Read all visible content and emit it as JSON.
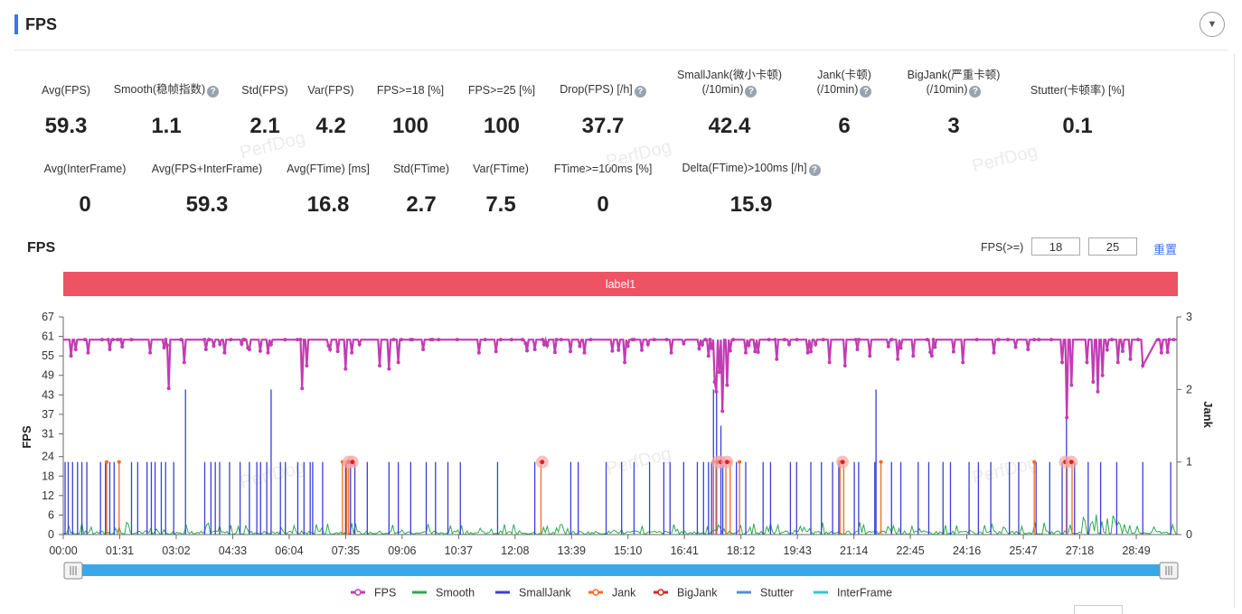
{
  "header": {
    "title": "FPS"
  },
  "metrics_row1": [
    {
      "label": "Avg(FPS)",
      "value": "59.3"
    },
    {
      "label": "Smooth(稳帧指数)",
      "value": "1.1",
      "help": true
    },
    {
      "label": "Std(FPS)",
      "value": "2.1"
    },
    {
      "label": "Var(FPS)",
      "value": "4.2"
    },
    {
      "label": "FPS>=18 [%]",
      "value": "100"
    },
    {
      "label": "FPS>=25 [%]",
      "value": "100"
    },
    {
      "label": "Drop(FPS) [/h]",
      "value": "37.7",
      "help": true
    },
    {
      "label": "SmallJank(微小卡顿)",
      "label2": "(/10min)",
      "value": "42.4",
      "help": true
    },
    {
      "label": "Jank(卡顿)",
      "label2": "(/10min)",
      "value": "6",
      "help": true
    },
    {
      "label": "BigJank(严重卡顿)",
      "label2": "(/10min)",
      "value": "3",
      "help": true
    },
    {
      "label": "Stutter(卡顿率) [%]",
      "value": "0.1"
    }
  ],
  "metrics_row2": [
    {
      "label": "Avg(InterFrame)",
      "value": "0"
    },
    {
      "label": "Avg(FPS+InterFrame)",
      "value": "59.3"
    },
    {
      "label": "Avg(FTime) [ms]",
      "value": "16.8"
    },
    {
      "label": "Std(FTime)",
      "value": "2.7"
    },
    {
      "label": "Var(FTime)",
      "value": "7.5"
    },
    {
      "label": "FTime>=100ms [%]",
      "value": "0"
    },
    {
      "label": "Delta(FTime)>100ms [/h]",
      "value": "15.9",
      "help": true
    }
  ],
  "watermark": "PerfDog",
  "chart_section": {
    "title": "FPS",
    "threshold_label": "FPS(>=)",
    "threshold1": "18",
    "threshold2": "25",
    "reset_label": "重置",
    "label_band": "label1"
  },
  "colors": {
    "FPS": "#c23cb3",
    "Smooth": "#2fa84f",
    "SmallJank": "#3a3fdb",
    "Jank": "#f26b21",
    "BigJank": "#e02020",
    "Stutter": "#4a90e2",
    "InterFrame": "#2ec7d6",
    "accent": "#3c72f5",
    "band": "#ee5364"
  },
  "chart_data": {
    "type": "line",
    "x_ticks": [
      "00:00",
      "01:31",
      "03:02",
      "04:33",
      "06:04",
      "07:35",
      "09:06",
      "10:37",
      "12:08",
      "13:39",
      "15:10",
      "16:41",
      "18:12",
      "19:43",
      "21:14",
      "22:45",
      "24:16",
      "25:47",
      "27:18",
      "28:49"
    ],
    "x_range_seconds": [
      0,
      1795
    ],
    "y_left": {
      "label": "FPS",
      "ticks": [
        0,
        6,
        12,
        18,
        24,
        31,
        37,
        43,
        49,
        55,
        61,
        67
      ],
      "range": [
        0,
        67
      ]
    },
    "y_right": {
      "label": "Jank",
      "ticks": [
        0,
        1,
        2,
        3
      ],
      "range": [
        0,
        3
      ]
    },
    "legend": [
      "FPS",
      "Smooth",
      "SmallJank",
      "Jank",
      "BigJank",
      "Stutter",
      "InterFrame"
    ],
    "legend_position": "bottom",
    "fps_baseline": 60,
    "fps_drops": [
      {
        "t": 12,
        "fps": 55
      },
      {
        "t": 20,
        "fps": 57
      },
      {
        "t": 40,
        "fps": 56
      },
      {
        "t": 75,
        "fps": 57
      },
      {
        "t": 140,
        "fps": 56
      },
      {
        "t": 170,
        "fps": 45
      },
      {
        "t": 195,
        "fps": 53
      },
      {
        "t": 230,
        "fps": 57
      },
      {
        "t": 260,
        "fps": 56
      },
      {
        "t": 300,
        "fps": 57
      },
      {
        "t": 330,
        "fps": 56
      },
      {
        "t": 385,
        "fps": 45
      },
      {
        "t": 392,
        "fps": 52
      },
      {
        "t": 430,
        "fps": 57
      },
      {
        "t": 455,
        "fps": 51
      },
      {
        "t": 465,
        "fps": 56
      },
      {
        "t": 510,
        "fps": 52
      },
      {
        "t": 525,
        "fps": 51
      },
      {
        "t": 540,
        "fps": 53
      },
      {
        "t": 580,
        "fps": 57
      },
      {
        "t": 670,
        "fps": 56
      },
      {
        "t": 760,
        "fps": 57
      },
      {
        "t": 840,
        "fps": 56
      },
      {
        "t": 905,
        "fps": 53
      },
      {
        "t": 980,
        "fps": 56
      },
      {
        "t": 1040,
        "fps": 55
      },
      {
        "t": 1050,
        "fps": 47
      },
      {
        "t": 1053,
        "fps": 44
      },
      {
        "t": 1057,
        "fps": 50
      },
      {
        "t": 1062,
        "fps": 38
      },
      {
        "t": 1070,
        "fps": 46
      },
      {
        "t": 1100,
        "fps": 56
      },
      {
        "t": 1150,
        "fps": 54
      },
      {
        "t": 1200,
        "fps": 56
      },
      {
        "t": 1235,
        "fps": 53
      },
      {
        "t": 1260,
        "fps": 52
      },
      {
        "t": 1280,
        "fps": 57
      },
      {
        "t": 1300,
        "fps": 55
      },
      {
        "t": 1345,
        "fps": 54
      },
      {
        "t": 1370,
        "fps": 55
      },
      {
        "t": 1400,
        "fps": 55
      },
      {
        "t": 1450,
        "fps": 53
      },
      {
        "t": 1500,
        "fps": 56
      },
      {
        "t": 1555,
        "fps": 57
      },
      {
        "t": 1610,
        "fps": 53
      },
      {
        "t": 1617,
        "fps": 36
      },
      {
        "t": 1625,
        "fps": 46
      },
      {
        "t": 1650,
        "fps": 53
      },
      {
        "t": 1660,
        "fps": 47
      },
      {
        "t": 1668,
        "fps": 44
      },
      {
        "t": 1675,
        "fps": 49
      },
      {
        "t": 1700,
        "fps": 53
      },
      {
        "t": 1720,
        "fps": 54
      },
      {
        "t": 1740,
        "fps": 52
      },
      {
        "t": 1745,
        "fps": 50
      },
      {
        "t": 1770,
        "fps": 56
      }
    ],
    "small_jank_times": [
      3,
      8,
      15,
      23,
      30,
      38,
      60,
      68,
      75,
      82,
      110,
      120,
      135,
      142,
      148,
      158,
      165,
      178,
      228,
      238,
      245,
      252,
      268,
      285,
      300,
      312,
      318,
      328,
      350,
      358,
      378,
      388,
      398,
      402,
      418,
      455,
      463,
      470,
      490,
      525,
      540,
      560,
      585,
      600,
      620,
      640,
      700,
      760,
      818,
      830,
      875,
      900,
      920,
      945,
      968,
      978,
      1000,
      1022,
      1032,
      1040,
      1045,
      1063,
      1085,
      1100,
      1128,
      1140,
      1172,
      1182,
      1205,
      1222,
      1240,
      1250,
      1275,
      1282,
      1308,
      1335,
      1350,
      1378,
      1395,
      1418,
      1430,
      1460,
      1475,
      1495,
      1525,
      1540,
      1568,
      1590,
      1610,
      1630,
      1652,
      1672,
      1698,
      1740,
      1785
    ],
    "small_jank_tall": [
      {
        "t": 197,
        "jank": 2.0
      },
      {
        "t": 335,
        "jank": 2.0
      },
      {
        "t": 1048,
        "jank": 2.0
      },
      {
        "t": 1053,
        "jank": 2.0
      },
      {
        "t": 1060,
        "jank": 1.5
      },
      {
        "t": 1310,
        "jank": 2.0
      },
      {
        "t": 1617,
        "jank": 1.6
      }
    ],
    "jank_times": [
      70,
      90,
      450,
      457,
      460,
      770,
      1048,
      1052,
      1068,
      1075,
      1090,
      1252,
      1258,
      1318,
      1565,
      1618,
      1626
    ],
    "bigjank_times": [
      460,
      466,
      772,
      1055,
      1060,
      1070,
      1256,
      1615,
      1625
    ],
    "smooth_level": 0.05
  }
}
